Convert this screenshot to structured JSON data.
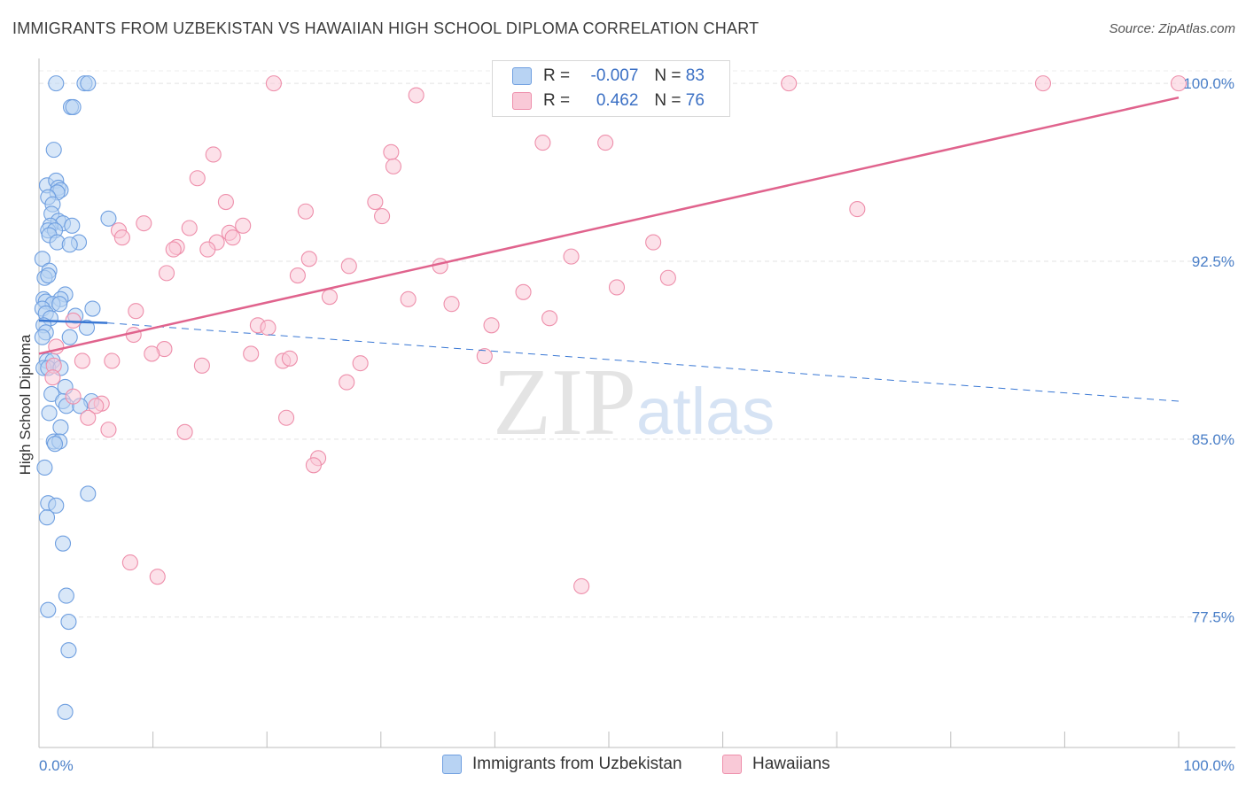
{
  "title": "IMMIGRANTS FROM UZBEKISTAN VS HAWAIIAN HIGH SCHOOL DIPLOMA CORRELATION CHART",
  "source": "Source: ZipAtlas.com",
  "watermark": {
    "zip": "ZIP",
    "atlas": "atlas"
  },
  "legend": {
    "r_label": "R =",
    "n_label": "N =",
    "rows": [
      {
        "name": "Immigrants from Uzbekistan",
        "r": "-0.007",
        "n": "83",
        "fill": "#b8d3f3",
        "stroke": "#6f9fe0"
      },
      {
        "name": "Hawaiians",
        "r": "0.462",
        "n": "76",
        "fill": "#f9c9d7",
        "stroke": "#ee8fab"
      }
    ]
  },
  "chart_data": {
    "type": "scatter",
    "title": "IMMIGRANTS FROM UZBEKISTAN VS HAWAIIAN HIGH SCHOOL DIPLOMA CORRELATION CHART",
    "xlabel": "",
    "ylabel": "High School Diploma",
    "xlim": [
      0,
      100
    ],
    "ylim": [
      72.0,
      101.2
    ],
    "x_tick_labels": [
      "0.0%",
      "100.0%"
    ],
    "y_ticks": [
      77.5,
      85.0,
      92.5,
      100.0
    ],
    "y_tick_labels": [
      "77.5%",
      "85.0%",
      "92.5%",
      "100.0%"
    ],
    "grid": true,
    "legend_position": "top-center",
    "series": [
      {
        "name": "Immigrants from Uzbekistan",
        "color": "#6f9fe0",
        "fill": "#b8d3f3",
        "trend_color": "#3a78d4",
        "trend": {
          "solid": [
            [
              0,
              90.0
            ],
            [
              6,
              89.9
            ]
          ],
          "dashed": [
            [
              6,
              89.9
            ],
            [
              100,
              86.6
            ]
          ]
        },
        "points": [
          [
            1.5,
            100.0
          ],
          [
            4.0,
            100.0
          ],
          [
            4.3,
            100.0
          ],
          [
            2.8,
            99.0
          ],
          [
            3.0,
            99.0
          ],
          [
            1.3,
            97.2
          ],
          [
            0.7,
            95.7
          ],
          [
            1.5,
            95.9
          ],
          [
            1.7,
            95.6
          ],
          [
            1.9,
            95.5
          ],
          [
            1.6,
            95.4
          ],
          [
            0.8,
            95.2
          ],
          [
            1.2,
            94.9
          ],
          [
            1.1,
            94.5
          ],
          [
            6.1,
            94.3
          ],
          [
            1.7,
            94.2
          ],
          [
            2.1,
            94.1
          ],
          [
            1.0,
            94.0
          ],
          [
            2.9,
            94.0
          ],
          [
            0.8,
            93.8
          ],
          [
            1.4,
            93.8
          ],
          [
            0.9,
            93.6
          ],
          [
            1.6,
            93.3
          ],
          [
            3.5,
            93.3
          ],
          [
            2.7,
            93.2
          ],
          [
            0.3,
            92.6
          ],
          [
            0.9,
            92.1
          ],
          [
            0.5,
            91.8
          ],
          [
            0.8,
            91.9
          ],
          [
            2.3,
            91.1
          ],
          [
            1.9,
            90.9
          ],
          [
            0.4,
            90.9
          ],
          [
            0.6,
            90.8
          ],
          [
            1.2,
            90.7
          ],
          [
            1.8,
            90.7
          ],
          [
            4.7,
            90.5
          ],
          [
            0.3,
            90.5
          ],
          [
            0.6,
            90.3
          ],
          [
            3.2,
            90.2
          ],
          [
            1.0,
            90.1
          ],
          [
            0.4,
            89.8
          ],
          [
            4.2,
            89.7
          ],
          [
            0.6,
            89.5
          ],
          [
            2.7,
            89.3
          ],
          [
            0.3,
            89.3
          ],
          [
            0.7,
            88.3
          ],
          [
            1.2,
            88.3
          ],
          [
            0.4,
            88.0
          ],
          [
            0.8,
            88.0
          ],
          [
            1.9,
            88.0
          ],
          [
            2.3,
            87.2
          ],
          [
            1.1,
            86.9
          ],
          [
            2.1,
            86.6
          ],
          [
            4.6,
            86.6
          ],
          [
            2.4,
            86.4
          ],
          [
            3.6,
            86.4
          ],
          [
            0.9,
            86.1
          ],
          [
            1.9,
            85.5
          ],
          [
            1.3,
            84.9
          ],
          [
            1.8,
            84.9
          ],
          [
            1.4,
            84.8
          ],
          [
            0.5,
            83.8
          ],
          [
            4.3,
            82.7
          ],
          [
            0.8,
            82.3
          ],
          [
            1.5,
            82.2
          ],
          [
            0.7,
            81.7
          ],
          [
            2.1,
            80.6
          ],
          [
            2.4,
            78.4
          ],
          [
            0.8,
            77.8
          ],
          [
            2.6,
            77.3
          ],
          [
            2.6,
            76.1
          ],
          [
            2.3,
            73.5
          ]
        ]
      },
      {
        "name": "Hawaiians",
        "color": "#ee8fab",
        "fill": "#f9c9d7",
        "trend_color": "#e0638d",
        "trend": {
          "solid": [
            [
              0,
              88.6
            ],
            [
              100,
              99.4
            ]
          ]
        },
        "points": [
          [
            20.6,
            100.0
          ],
          [
            65.8,
            100.0
          ],
          [
            88.1,
            100.0
          ],
          [
            100.0,
            100.0
          ],
          [
            33.1,
            99.5
          ],
          [
            44.2,
            97.5
          ],
          [
            49.7,
            97.5
          ],
          [
            30.9,
            97.1
          ],
          [
            15.3,
            97.0
          ],
          [
            31.1,
            96.5
          ],
          [
            13.9,
            96.0
          ],
          [
            16.4,
            95.0
          ],
          [
            29.5,
            95.0
          ],
          [
            23.4,
            94.6
          ],
          [
            71.8,
            94.7
          ],
          [
            30.1,
            94.4
          ],
          [
            9.2,
            94.1
          ],
          [
            7.0,
            93.8
          ],
          [
            13.2,
            93.9
          ],
          [
            17.9,
            94.0
          ],
          [
            16.7,
            93.7
          ],
          [
            7.3,
            93.5
          ],
          [
            15.6,
            93.3
          ],
          [
            17.0,
            93.5
          ],
          [
            12.1,
            93.1
          ],
          [
            11.8,
            93.0
          ],
          [
            53.9,
            93.3
          ],
          [
            14.8,
            93.0
          ],
          [
            23.7,
            92.6
          ],
          [
            46.7,
            92.7
          ],
          [
            27.2,
            92.3
          ],
          [
            35.2,
            92.3
          ],
          [
            11.2,
            92.0
          ],
          [
            22.7,
            91.9
          ],
          [
            55.2,
            91.8
          ],
          [
            50.7,
            91.4
          ],
          [
            42.5,
            91.2
          ],
          [
            25.5,
            91.0
          ],
          [
            32.4,
            90.9
          ],
          [
            36.2,
            90.7
          ],
          [
            8.5,
            90.4
          ],
          [
            44.8,
            90.1
          ],
          [
            3.0,
            90.0
          ],
          [
            19.2,
            89.8
          ],
          [
            20.1,
            89.7
          ],
          [
            39.7,
            89.8
          ],
          [
            8.3,
            89.4
          ],
          [
            1.5,
            88.9
          ],
          [
            11.0,
            88.8
          ],
          [
            9.9,
            88.6
          ],
          [
            18.6,
            88.6
          ],
          [
            39.1,
            88.5
          ],
          [
            3.8,
            88.3
          ],
          [
            6.4,
            88.3
          ],
          [
            21.4,
            88.3
          ],
          [
            22.0,
            88.4
          ],
          [
            28.2,
            88.2
          ],
          [
            14.3,
            88.1
          ],
          [
            1.3,
            88.1
          ],
          [
            1.2,
            87.6
          ],
          [
            27.0,
            87.4
          ],
          [
            3.0,
            86.8
          ],
          [
            5.5,
            86.5
          ],
          [
            5.0,
            86.4
          ],
          [
            21.7,
            85.9
          ],
          [
            4.3,
            85.9
          ],
          [
            6.1,
            85.4
          ],
          [
            12.8,
            85.3
          ],
          [
            24.5,
            84.2
          ],
          [
            24.1,
            83.9
          ],
          [
            8.0,
            79.8
          ],
          [
            10.4,
            79.2
          ],
          [
            47.6,
            78.8
          ]
        ]
      }
    ]
  }
}
